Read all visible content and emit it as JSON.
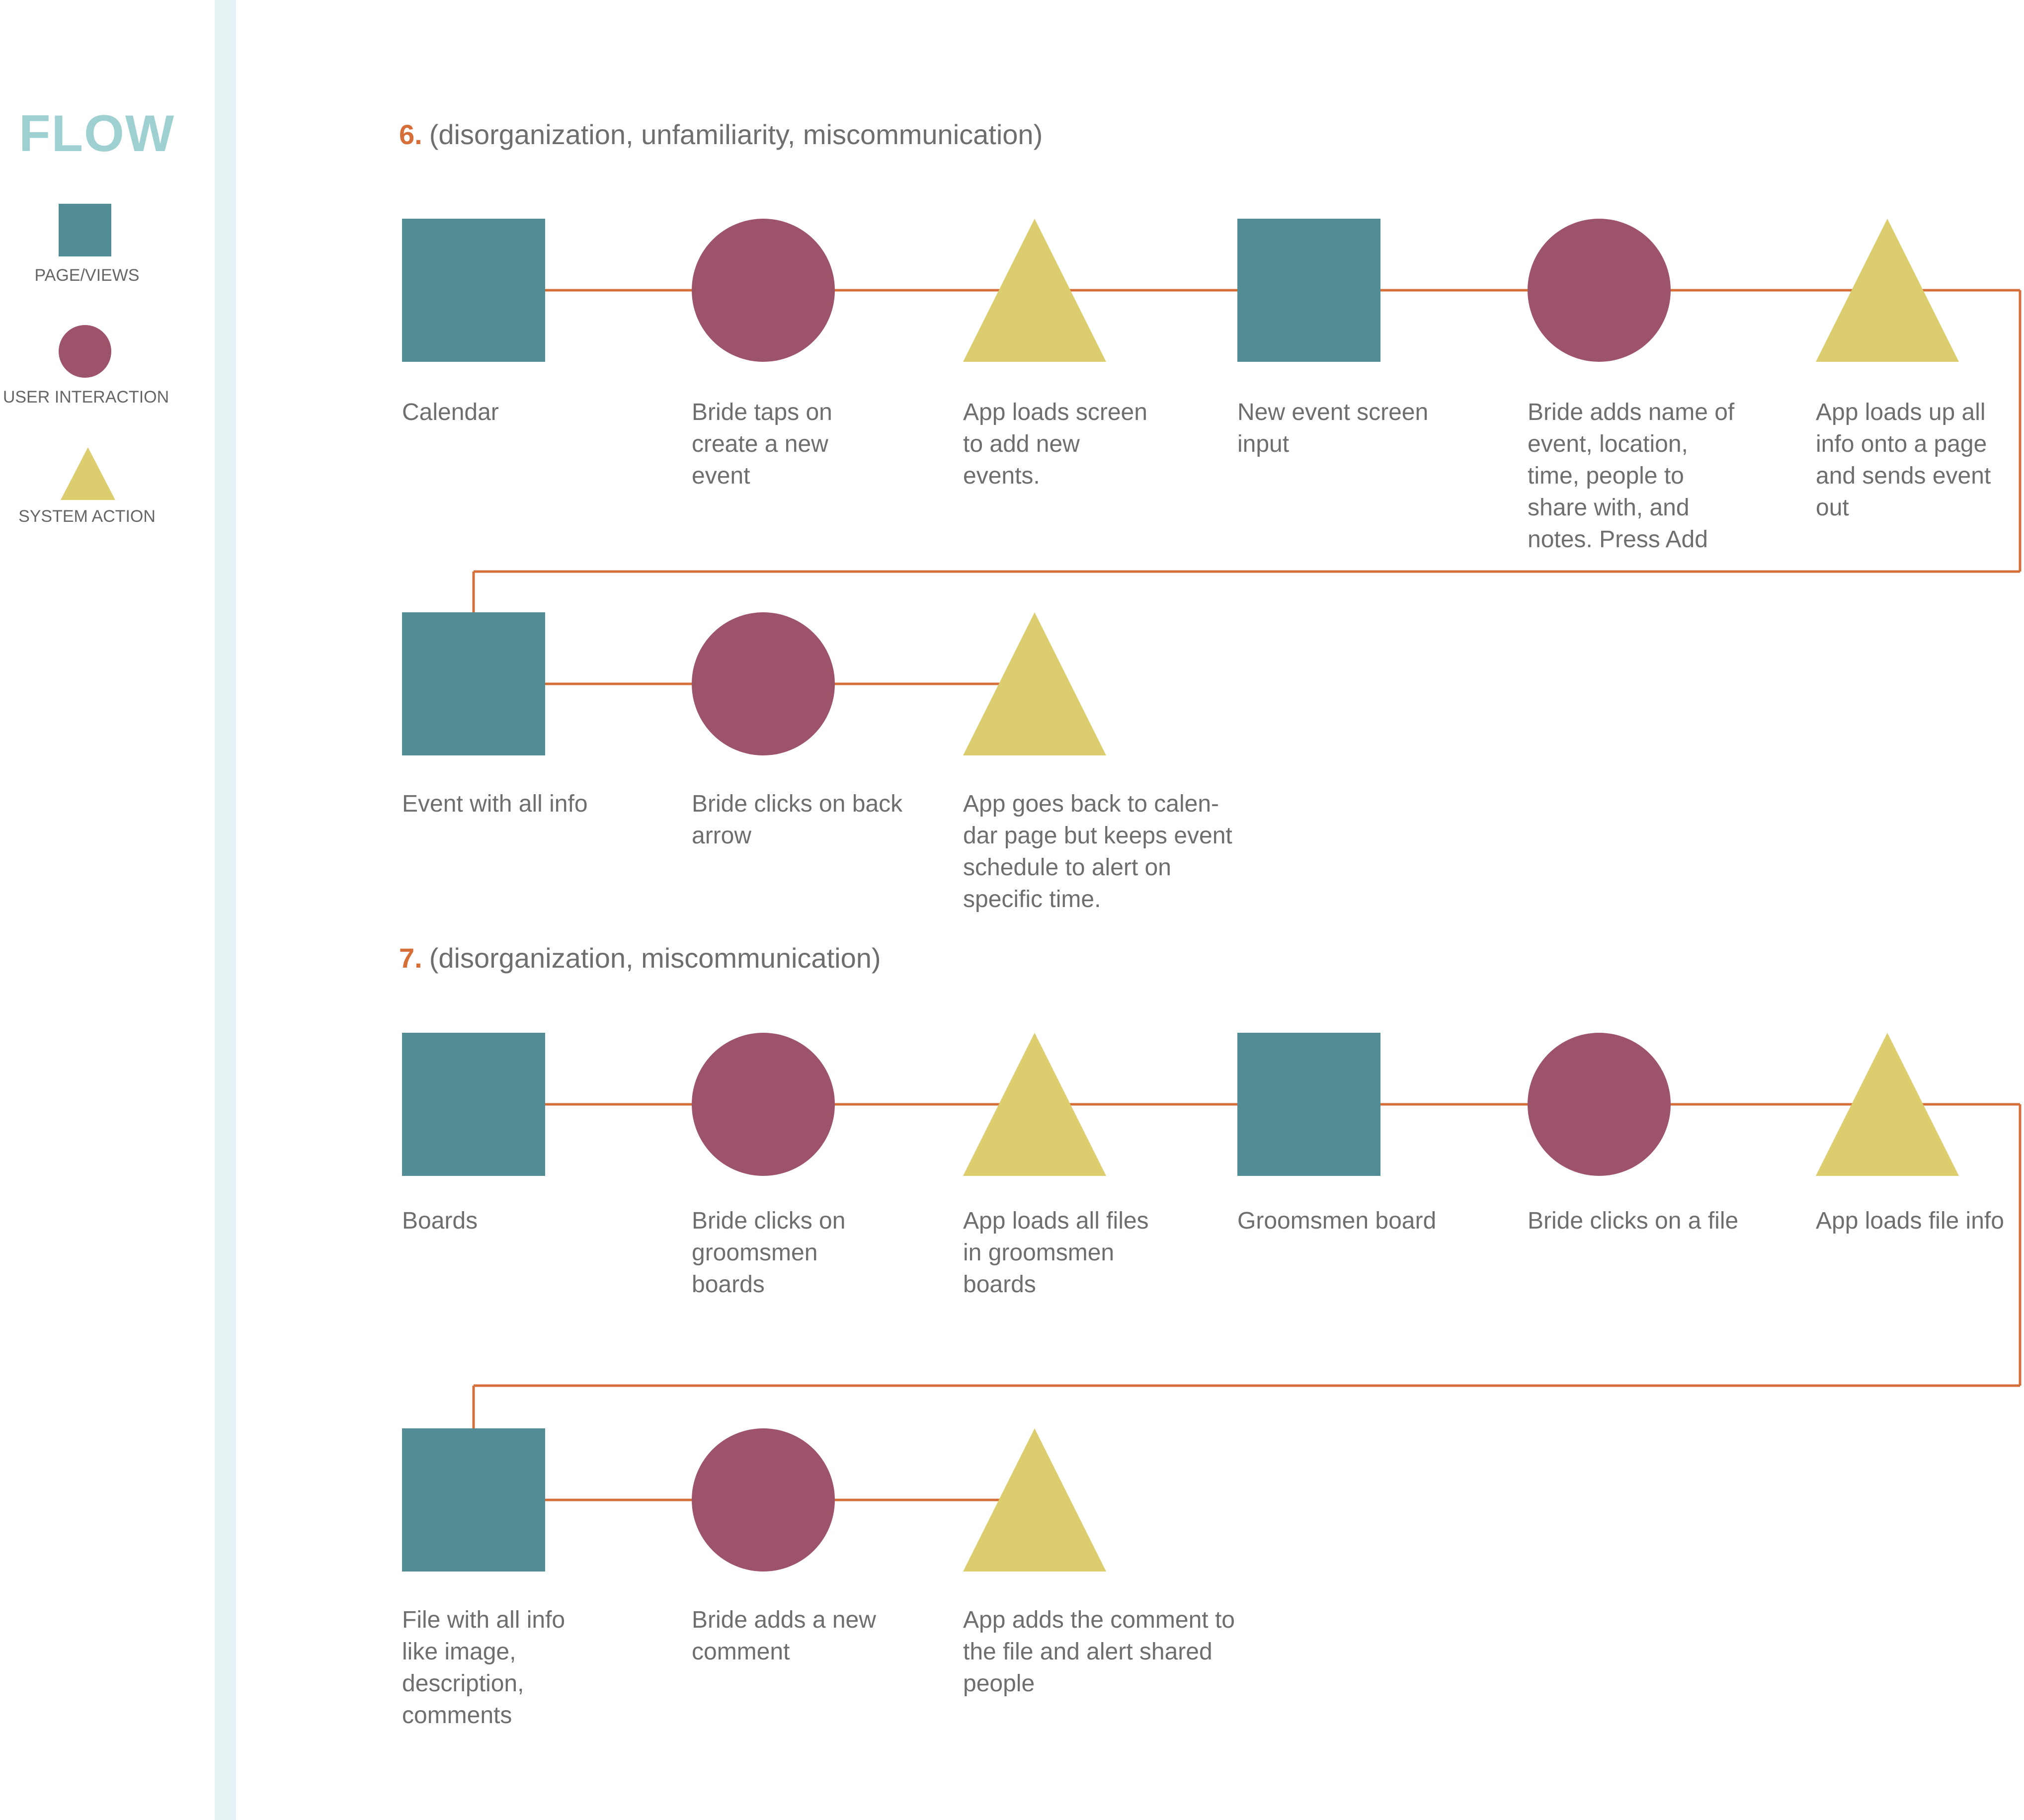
{
  "legend": {
    "title": "FLOW",
    "items": [
      {
        "shape": "square",
        "label": "PAGE/VIEWS"
      },
      {
        "shape": "circle",
        "label": "USER INTERACTION"
      },
      {
        "shape": "triangle",
        "label": "SYSTEM ACTION"
      }
    ]
  },
  "colors": {
    "page": "#528c94",
    "interaction": "#9d5369",
    "system": "#dccd6f",
    "connector": "#d56e38",
    "title": "#9ed0d2",
    "sidebar": "#e6f2f4",
    "text": "#6e6e6e"
  },
  "sections": [
    {
      "number": "6.",
      "caption": "(disorganization, unfamiliarity, miscommunication)",
      "row1": [
        {
          "shape": "square",
          "label": "Calendar"
        },
        {
          "shape": "circle",
          "label": "Bride taps on\ncreate a new\nevent"
        },
        {
          "shape": "triangle",
          "label": "App loads screen\nto add new\nevents."
        },
        {
          "shape": "square",
          "label": "New event screen\ninput"
        },
        {
          "shape": "circle",
          "label": "Bride adds name of\nevent, location,\ntime, people to\nshare with, and\nnotes. Press Add"
        },
        {
          "shape": "triangle",
          "label": "App loads up all\ninfo onto a page\nand sends event\nout"
        }
      ],
      "row2": [
        {
          "shape": "square",
          "label": "Event with all info"
        },
        {
          "shape": "circle",
          "label": "Bride clicks on back\narrow"
        },
        {
          "shape": "triangle",
          "label": "App goes back to calen-\ndar page but keeps event\nschedule to alert on\nspecific time."
        }
      ]
    },
    {
      "number": "7.",
      "caption": "(disorganization, miscommunication)",
      "row1": [
        {
          "shape": "square",
          "label": "Boards"
        },
        {
          "shape": "circle",
          "label": "Bride clicks on\ngroomsmen\nboards"
        },
        {
          "shape": "triangle",
          "label": "App loads all files\nin groomsmen\nboards"
        },
        {
          "shape": "square",
          "label": "Groomsmen board"
        },
        {
          "shape": "circle",
          "label": "Bride clicks on a file"
        },
        {
          "shape": "triangle",
          "label": "App loads file info"
        }
      ],
      "row2": [
        {
          "shape": "square",
          "label": "File with all info\nlike image,\ndescription,\ncomments"
        },
        {
          "shape": "circle",
          "label": "Bride adds a new\ncomment"
        },
        {
          "shape": "triangle",
          "label": "App adds the comment to\nthe file and alert shared\npeople"
        }
      ]
    }
  ]
}
